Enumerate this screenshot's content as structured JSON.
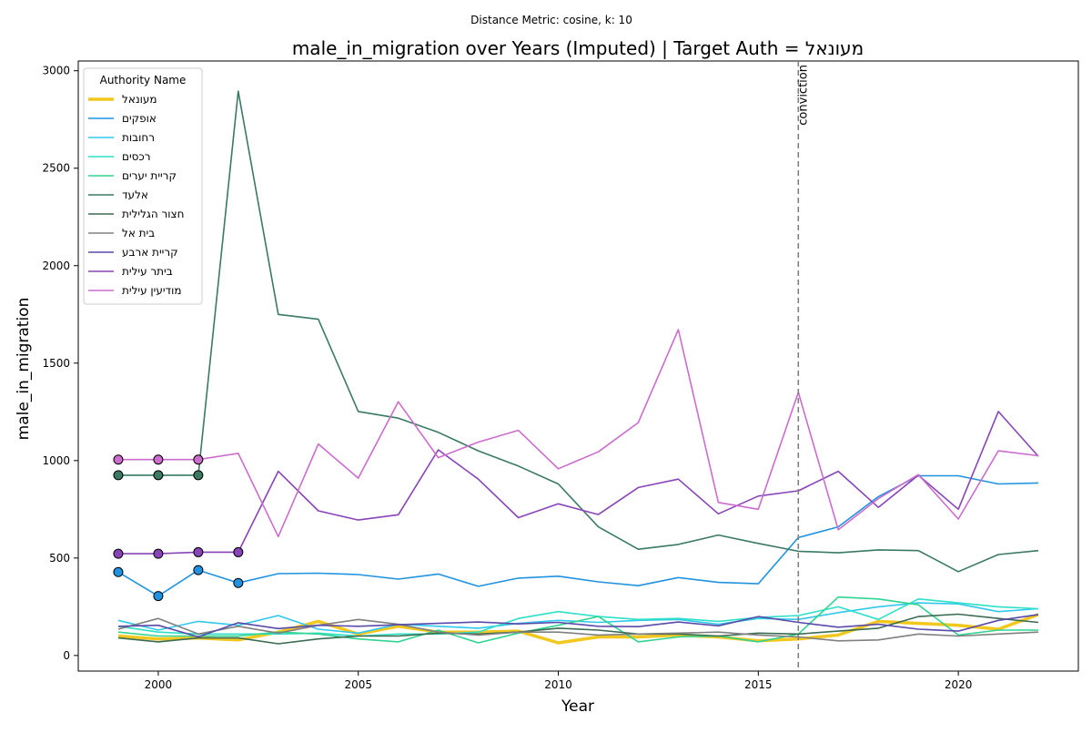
{
  "chart_data": {
    "type": "line",
    "suptitle": "Distance Metric: cosine, k: 10",
    "title": "male_in_migration over Years (Imputed) | Target Auth = מעונאל",
    "xlabel": "Year",
    "ylabel": "male_in_migration",
    "xlim": [
      1998,
      2023
    ],
    "ylim": [
      -80,
      3050
    ],
    "xticks": [
      2000,
      2005,
      2010,
      2015,
      2020
    ],
    "yticks": [
      0,
      500,
      1000,
      1500,
      2000,
      2500,
      3000
    ],
    "grid": false,
    "legend": {
      "title": "Authority Name",
      "placement": "top-left"
    },
    "annotation": {
      "x": 2016,
      "label": "conviction",
      "color": "#808080"
    },
    "x": [
      1999,
      2000,
      2001,
      2002,
      2003,
      2004,
      2005,
      2006,
      2007,
      2008,
      2009,
      2010,
      2011,
      2012,
      2013,
      2014,
      2015,
      2016,
      2017,
      2018,
      2019,
      2020,
      2021,
      2022
    ],
    "series": [
      {
        "name": "מעונאל",
        "color": "#f2c81e",
        "target": true,
        "values": [
          100,
          85,
          90,
          80,
          120,
          175,
          110,
          150,
          120,
          120,
          125,
          65,
          95,
          95,
          105,
          95,
          75,
          85,
          105,
          175,
          165,
          155,
          135,
          210
        ]
      },
      {
        "name": "אופקים",
        "color": "#2093e0",
        "imputed_through": 2002,
        "values": [
          428,
          305,
          438,
          372,
          420,
          422,
          415,
          392,
          418,
          355,
          397,
          407,
          378,
          358,
          400,
          375,
          368,
          605,
          660,
          815,
          922,
          922,
          880,
          885
        ]
      },
      {
        "name": "רחובות",
        "color": "#30c8ec",
        "values": [
          180,
          130,
          175,
          155,
          205,
          135,
          115,
          160,
          150,
          140,
          165,
          180,
          170,
          180,
          185,
          160,
          190,
          185,
          220,
          250,
          270,
          265,
          225,
          240
        ]
      },
      {
        "name": "רכסים",
        "color": "#2ee0c8",
        "values": [
          150,
          120,
          110,
          110,
          110,
          115,
          100,
          110,
          110,
          120,
          190,
          225,
          200,
          185,
          190,
          175,
          195,
          205,
          250,
          185,
          290,
          270,
          250,
          240
        ]
      },
      {
        "name": "קריית יערים",
        "color": "#30d490",
        "values": [
          120,
          100,
          100,
          100,
          120,
          110,
          85,
          70,
          130,
          65,
          115,
          155,
          200,
          70,
          95,
          100,
          70,
          110,
          300,
          290,
          260,
          105,
          130,
          130
        ]
      },
      {
        "name": "אלעד",
        "color": "#3a7a62",
        "imputed_through": 2001,
        "values": [
          925,
          925,
          925,
          2895,
          1750,
          1725,
          1252,
          1218,
          1145,
          1050,
          972,
          880,
          660,
          545,
          570,
          618,
          575,
          535,
          527,
          542,
          538,
          430,
          518,
          538
        ]
      },
      {
        "name": "חצור הגלילית",
        "color": "#3b6b52",
        "values": [
          90,
          70,
          90,
          90,
          60,
          85,
          100,
          100,
          115,
          110,
          120,
          140,
          130,
          110,
          110,
          100,
          115,
          110,
          125,
          140,
          200,
          212,
          190,
          170
        ]
      },
      {
        "name": "בית אל",
        "color": "#808080",
        "values": [
          135,
          190,
          110,
          150,
          115,
          155,
          185,
          160,
          120,
          105,
          120,
          120,
          105,
          110,
          115,
          120,
          105,
          95,
          75,
          80,
          110,
          100,
          110,
          120
        ]
      },
      {
        "name": "קריית ארבע",
        "color": "#5a4aaa",
        "values": [
          150,
          155,
          95,
          168,
          138,
          155,
          150,
          158,
          165,
          172,
          162,
          170,
          150,
          148,
          172,
          152,
          200,
          170,
          145,
          160,
          135,
          125,
          180,
          210
        ]
      },
      {
        "name": "ביתר עילית",
        "color": "#8845b8",
        "imputed_through": 2002,
        "values": [
          522,
          522,
          530,
          530,
          945,
          742,
          695,
          722,
          1055,
          905,
          707,
          778,
          723,
          862,
          905,
          727,
          818,
          845,
          945,
          760,
          925,
          750,
          1252,
          1022
        ]
      },
      {
        "name": "מודיעין עילית",
        "color": "#cc6ccc",
        "imputed_through": 2001,
        "values": [
          1005,
          1005,
          1005,
          1037,
          610,
          1085,
          910,
          1302,
          1015,
          1095,
          1155,
          958,
          1045,
          1195,
          1672,
          785,
          750,
          1350,
          645,
          805,
          928,
          700,
          1050,
          1025
        ]
      }
    ]
  }
}
